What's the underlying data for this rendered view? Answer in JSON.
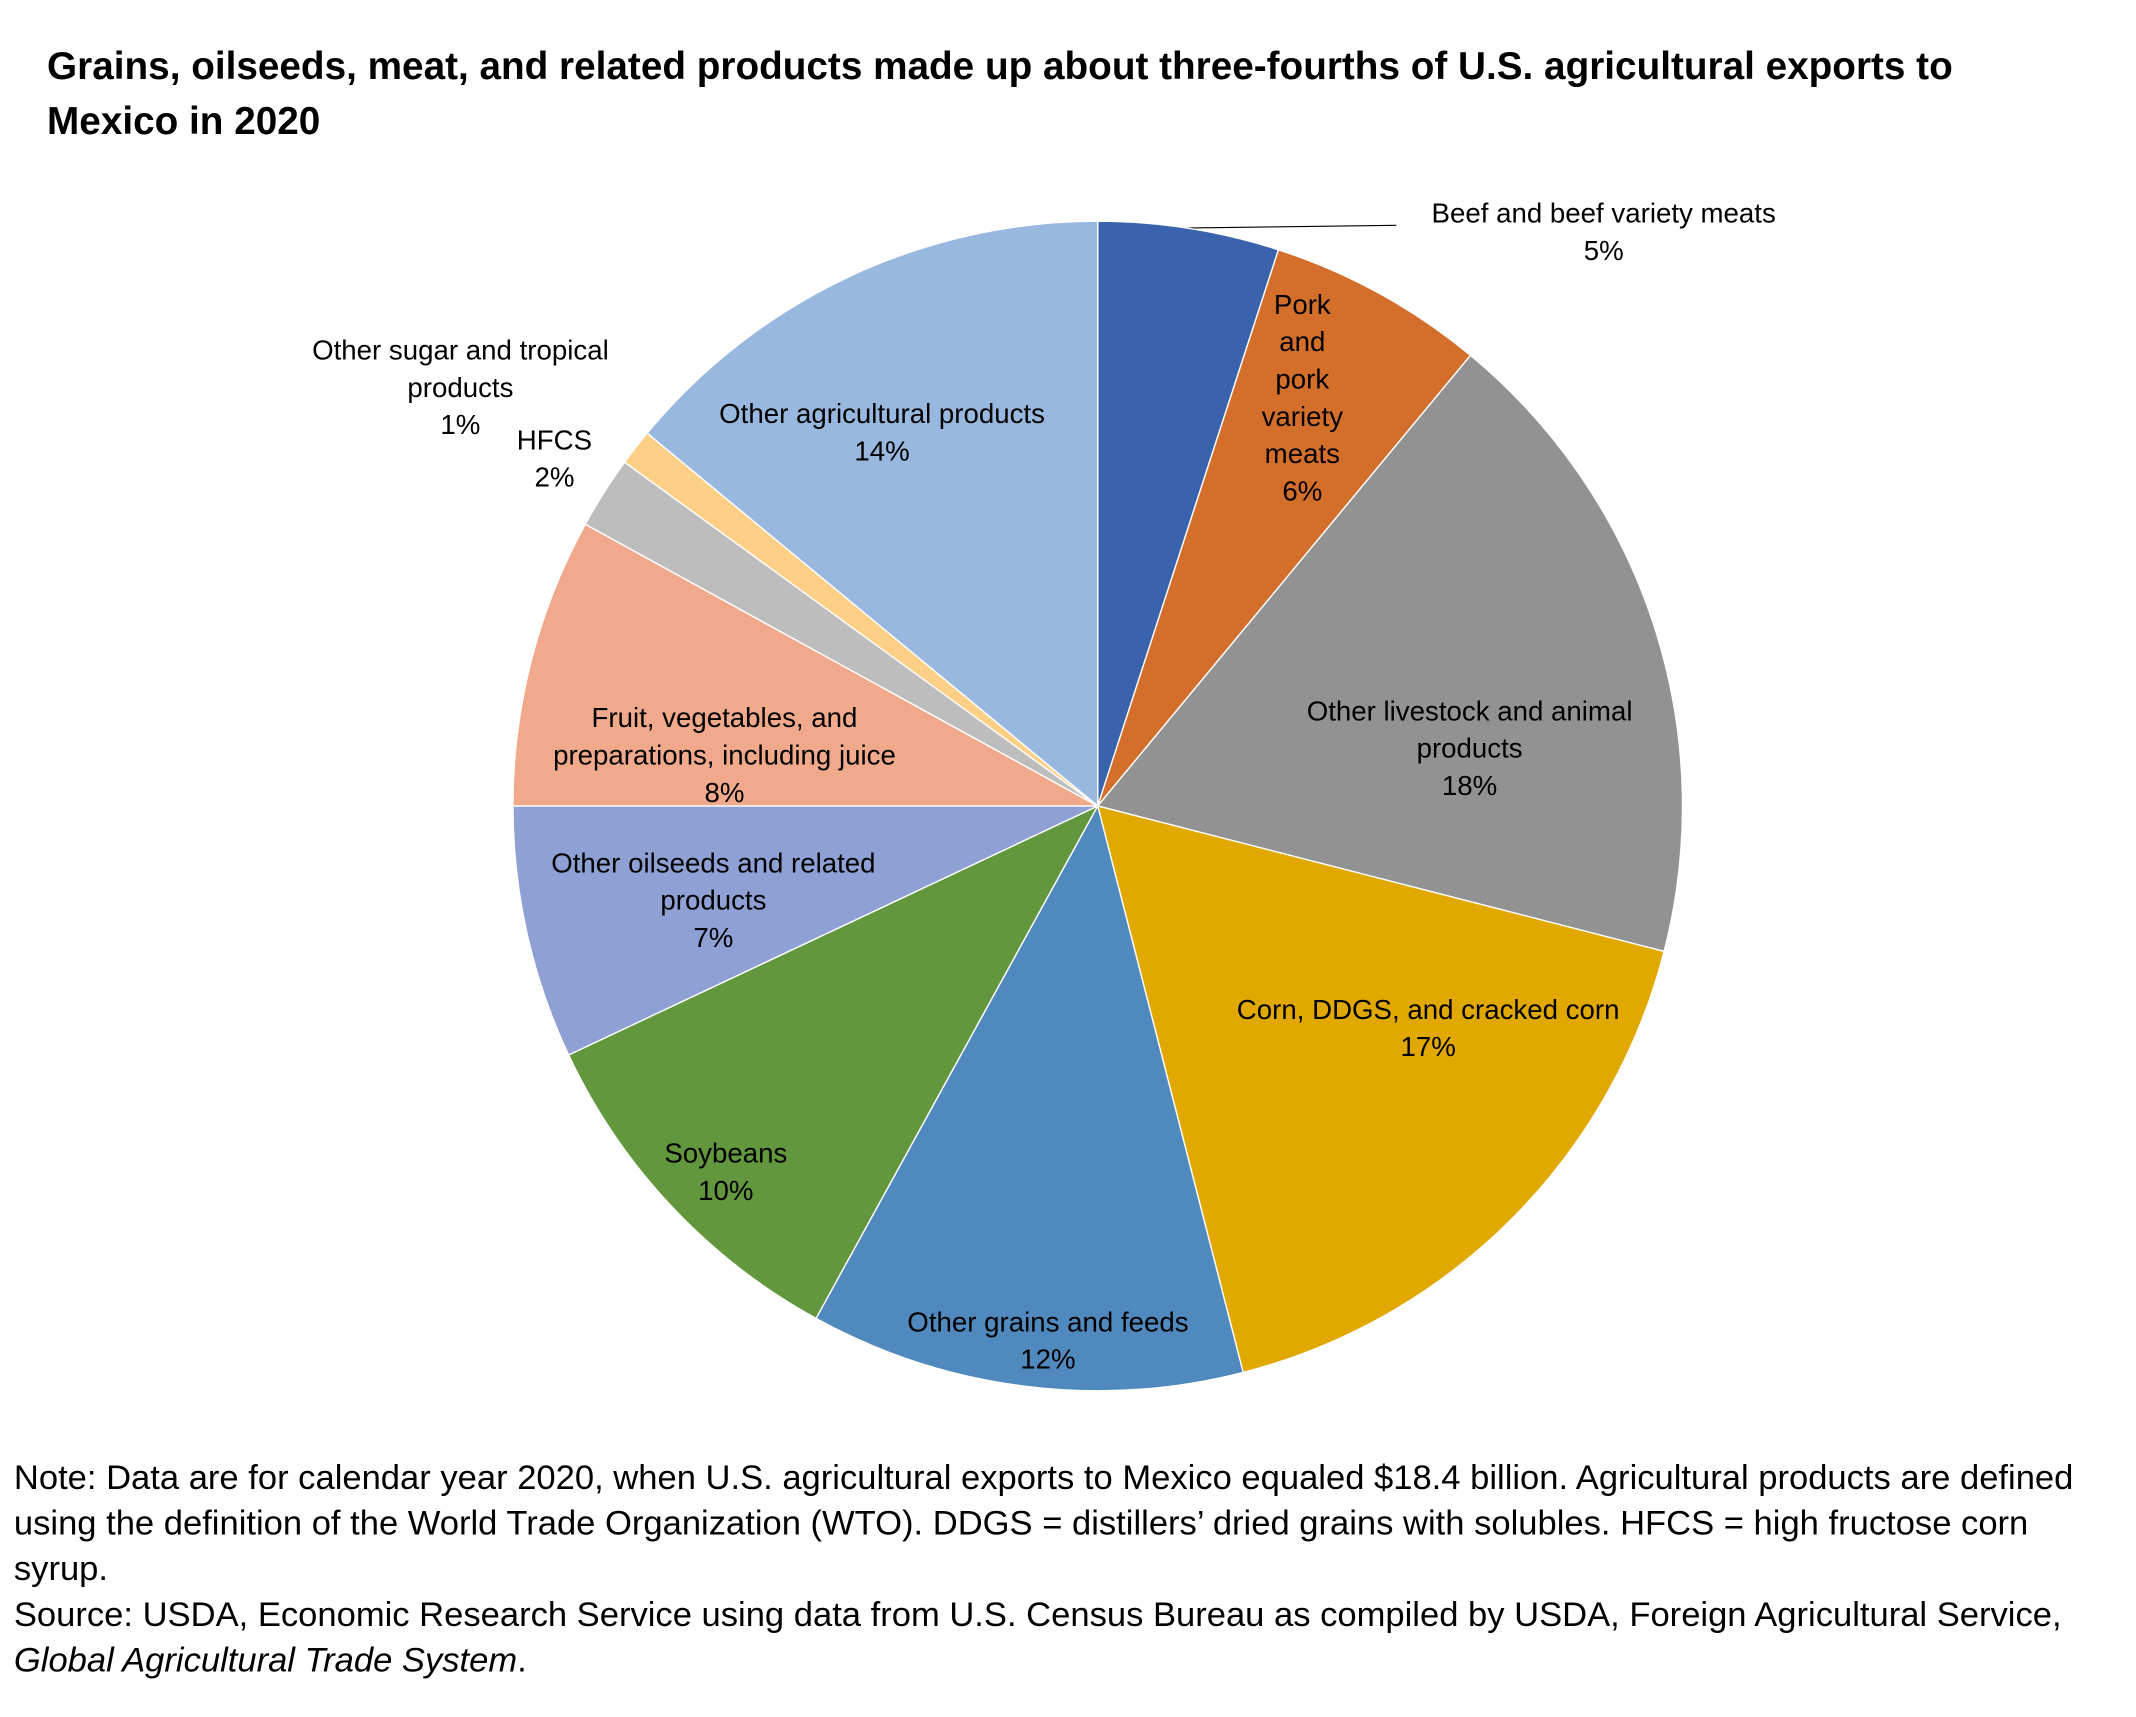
{
  "chart_data": {
    "type": "pie",
    "title": "Grains, oilseeds, meat, and related products made up about three-fourths of U.S. agricultural exports to Mexico in 2020",
    "categories": [
      "Beef and beef variety meats",
      "Pork and pork variety meats",
      "Other livestock and animal products",
      "Corn, DDGS, and cracked corn",
      "Other grains and feeds",
      "Soybeans",
      "Other oilseeds and related products",
      "Fruit, vegetables, and preparations, including juice",
      "HFCS",
      "Other sugar and tropical products",
      "Other agricultural products"
    ],
    "values": [
      5,
      6,
      18,
      17,
      12,
      10,
      7,
      8,
      2,
      1,
      14
    ],
    "value_labels": [
      "5%",
      "6%",
      "18%",
      "17%",
      "12%",
      "10%",
      "7%",
      "8%",
      "2%",
      "1%",
      "14%"
    ],
    "colors": [
      "#3a63ad",
      "#d46f2b",
      "#929292",
      "#e1a800",
      "#4f89bd",
      "#62973e",
      "#8ea0d4",
      "#f1a98b",
      "#bdbdbd",
      "#fecf86",
      "#98b8df"
    ],
    "note": "Note: Data are for calendar year 2020, when U.S. agricultural exports to Mexico equaled $18.4 billion. Agricultural products are defined using the definition of the World Trade Organization (WTO). DDGS = distillers’ dried grains with solubles. HFCS = high fructose corn syrup.",
    "source": {
      "text": "Source: USDA, Economic Research Service using data from U.S. Census Bureau as compiled by USDA, Foreign Agricultural Service, ",
      "italic": "Global Agricultural Trade System",
      "end": "."
    }
  }
}
